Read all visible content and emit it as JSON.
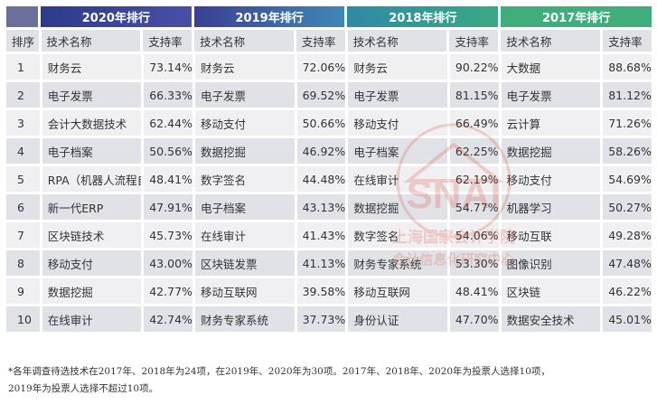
{
  "header": {
    "group_2020": "2020年排行",
    "group_2019": "2019年排行",
    "group_2018": "2018年排行",
    "group_2017": "2017年排行"
  },
  "subheader": {
    "rank": "排序",
    "name": "技术名称",
    "pct": "支持率"
  },
  "rows": [
    {
      "rank": "1",
      "y2020": {
        "name": "财务云",
        "pct": "73.14%"
      },
      "y2019": {
        "name": "财务云",
        "pct": "72.06%"
      },
      "y2018": {
        "name": "财务云",
        "pct": "90.22%"
      },
      "y2017": {
        "name": "大数据",
        "pct": "88.68%"
      }
    },
    {
      "rank": "2",
      "y2020": {
        "name": "电子发票",
        "pct": "66.33%"
      },
      "y2019": {
        "name": "电子发票",
        "pct": "69.52%"
      },
      "y2018": {
        "name": "电子发票",
        "pct": "81.15%"
      },
      "y2017": {
        "name": "电子发票",
        "pct": "81.12%"
      }
    },
    {
      "rank": "3",
      "y2020": {
        "name": "会计大数据技术",
        "pct": "62.44%"
      },
      "y2019": {
        "name": "移动支付",
        "pct": "50.66%"
      },
      "y2018": {
        "name": "移动支付",
        "pct": "66.49%"
      },
      "y2017": {
        "name": "云计算",
        "pct": "71.26%"
      }
    },
    {
      "rank": "4",
      "y2020": {
        "name": "电子档案",
        "pct": "50.56%"
      },
      "y2019": {
        "name": "数据挖掘",
        "pct": "46.92%"
      },
      "y2018": {
        "name": "电子档案",
        "pct": "62.25%"
      },
      "y2017": {
        "name": "数据挖掘",
        "pct": "58.26%"
      }
    },
    {
      "rank": "5",
      "y2020": {
        "name": "RPA（机器人流程自动化）",
        "pct": "48.41%"
      },
      "y2019": {
        "name": "数字签名",
        "pct": "44.48%"
      },
      "y2018": {
        "name": "在线审计",
        "pct": "62.19%"
      },
      "y2017": {
        "name": "移动支付",
        "pct": "54.69%"
      }
    },
    {
      "rank": "6",
      "y2020": {
        "name": "新一代ERP",
        "pct": "47.91%"
      },
      "y2019": {
        "name": "电子档案",
        "pct": "43.13%"
      },
      "y2018": {
        "name": "数据挖掘",
        "pct": "54.77%"
      },
      "y2017": {
        "name": "机器学习",
        "pct": "50.27%"
      }
    },
    {
      "rank": "7",
      "y2020": {
        "name": "区块链技术",
        "pct": "45.73%"
      },
      "y2019": {
        "name": "在线审计",
        "pct": "41.43%"
      },
      "y2018": {
        "name": "数字签名",
        "pct": "54.06%"
      },
      "y2017": {
        "name": "移动互联",
        "pct": "49.28%"
      }
    },
    {
      "rank": "8",
      "y2020": {
        "name": "移动支付",
        "pct": "43.00%"
      },
      "y2019": {
        "name": "区块链发票",
        "pct": "41.13%"
      },
      "y2018": {
        "name": "财务专家系统",
        "pct": "53.30%"
      },
      "y2017": {
        "name": "图像识别",
        "pct": "47.48%"
      }
    },
    {
      "rank": "9",
      "y2020": {
        "name": "数据挖掘",
        "pct": "42.77%"
      },
      "y2019": {
        "name": "移动互联网",
        "pct": "39.58%"
      },
      "y2018": {
        "name": "移动互联网",
        "pct": "48.41%"
      },
      "y2017": {
        "name": "区块链",
        "pct": "46.22%"
      }
    },
    {
      "rank": "10",
      "y2020": {
        "name": "在线审计",
        "pct": "42.74%"
      },
      "y2019": {
        "name": "财务专家系统",
        "pct": "37.73%"
      },
      "y2018": {
        "name": "身份认证",
        "pct": "47.70%"
      },
      "y2017": {
        "name": "数据安全技术",
        "pct": "45.01%"
      }
    }
  ],
  "watermark": {
    "logo_text": "SNAI",
    "line1": "上海国家会计学院",
    "line2": "会计信息化研究中心"
  },
  "footnote": {
    "line1": "*各年调查待选技术在2017年、2018年为24项，在2019年、2020年为30项。2017年、2018年、2020年为投票人选择10项，",
    "line2": "2019年为投票人选择不超过10项。"
  },
  "colors": {
    "rank_header": "#6a6f9b",
    "header_2020": "#34408f",
    "header_2019": "#3a6ea8",
    "header_2018": "#35999a",
    "header_2017": "#3fae7c",
    "row_light": "#f0f0f3",
    "row_dark": "#e1e2e7"
  }
}
